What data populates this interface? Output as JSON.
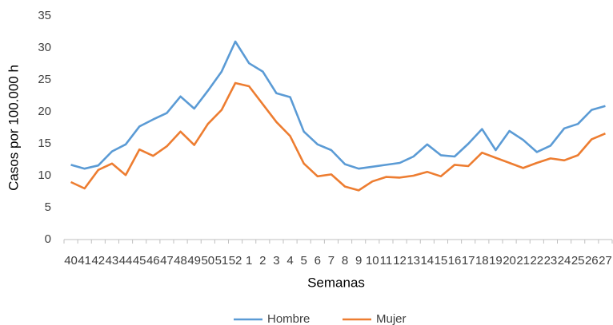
{
  "chart_data": {
    "type": "line",
    "categories": [
      "40",
      "41",
      "42",
      "43",
      "44",
      "45",
      "46",
      "47",
      "48",
      "49",
      "50",
      "51",
      "52",
      "1",
      "2",
      "3",
      "4",
      "5",
      "6",
      "7",
      "8",
      "9",
      "10",
      "11",
      "12",
      "13",
      "14",
      "15",
      "16",
      "17",
      "18",
      "19",
      "20",
      "21",
      "22",
      "23",
      "24",
      "25",
      "26",
      "27"
    ],
    "series": [
      {
        "name": "Hombre",
        "color": "#5b9bd5",
        "values": [
          11.7,
          11.1,
          11.6,
          13.8,
          14.9,
          17.7,
          18.8,
          19.8,
          22.4,
          20.5,
          23.3,
          26.3,
          31,
          27.6,
          26.3,
          22.9,
          22.3,
          16.9,
          14.9,
          14.0,
          11.8,
          11.1,
          11.4,
          11.7,
          12,
          13,
          14.9,
          13.2,
          13.0,
          15,
          17.3,
          14,
          17,
          15.6,
          13.7,
          14.7,
          17.4,
          18.1,
          20.3,
          20.9
        ]
      },
      {
        "name": "Mujer",
        "color": "#ed7d31",
        "values": [
          9,
          8,
          10.9,
          11.9,
          10.1,
          14.1,
          13.1,
          14.6,
          16.9,
          14.8,
          18.1,
          20.3,
          24.5,
          24,
          21.2,
          18.4,
          16.2,
          11.9,
          9.9,
          10.2,
          8.3,
          7.7,
          9.1,
          9.8,
          9.7,
          10.0,
          10.6,
          9.9,
          11.7,
          11.5,
          13.6,
          12.8,
          12.0,
          11.2,
          12.0,
          12.7,
          12.4,
          13.2,
          15.7,
          16.6
        ]
      }
    ],
    "x_label": "Semanas",
    "y_label": "Casos por 100.000 h",
    "ylim": [
      0,
      35
    ],
    "yticks": [
      0,
      5,
      10,
      15,
      20,
      25,
      30,
      35
    ],
    "grid": false,
    "legend": "bottom"
  }
}
